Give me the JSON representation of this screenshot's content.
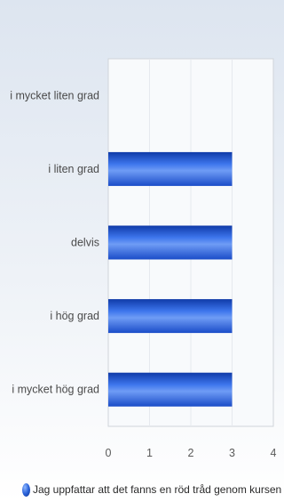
{
  "chart_data": {
    "type": "bar",
    "orientation": "horizontal",
    "categories": [
      "i mycket liten grad",
      "i liten grad",
      "delvis",
      "i hög grad",
      "i mycket hög grad"
    ],
    "series": [
      {
        "name": "Jag uppfattar att det fanns en röd tråd genom kursen – från lärandem",
        "values": [
          0,
          3,
          3,
          3,
          3
        ]
      }
    ],
    "xlim": [
      0,
      4
    ],
    "x_ticks": [
      "0",
      "1",
      "2",
      "3",
      "4"
    ],
    "grid": true,
    "legend_position": "bottom",
    "colors": {
      "bar": "#1f55d6",
      "bar_light": "#6f9cf5",
      "bar_dark": "#0f3aa8"
    }
  }
}
